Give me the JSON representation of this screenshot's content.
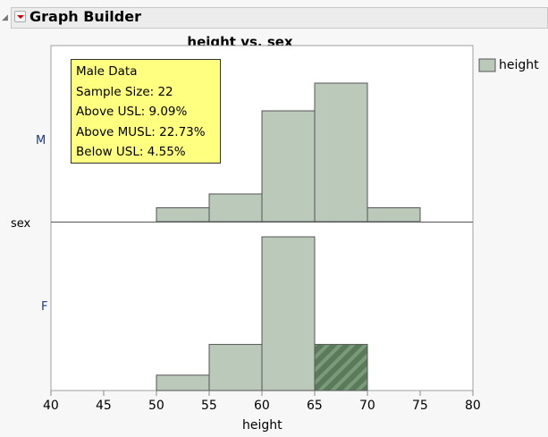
{
  "app": {
    "title": "Graph Builder"
  },
  "chart_data": {
    "type": "bar",
    "title": "height vs. sex",
    "xlabel": "height",
    "ylabel": "sex",
    "xlim": [
      40,
      80
    ],
    "xticks": [
      "40",
      "45",
      "50",
      "55",
      "60",
      "65",
      "70",
      "75",
      "80"
    ],
    "bins": [
      [
        50,
        55
      ],
      [
        55,
        60
      ],
      [
        60,
        65
      ],
      [
        65,
        70
      ],
      [
        70,
        75
      ]
    ],
    "panels": [
      {
        "group": "M",
        "counts": [
          1,
          2,
          8,
          10,
          1
        ]
      },
      {
        "group": "F",
        "counts": [
          1,
          3,
          10,
          3,
          0
        ],
        "highlighted_bin": 3
      }
    ],
    "legend": {
      "label": "height",
      "position": "top-right"
    },
    "colors": {
      "bar": "#bbc9bb",
      "highlight": "#5a7a5a"
    }
  },
  "tooltip": {
    "lines": [
      "Male Data",
      "Sample Size: 22",
      "Above USL: 9.09%",
      "Above MUSL: 22.73%",
      "Below USL: 4.55%"
    ]
  }
}
